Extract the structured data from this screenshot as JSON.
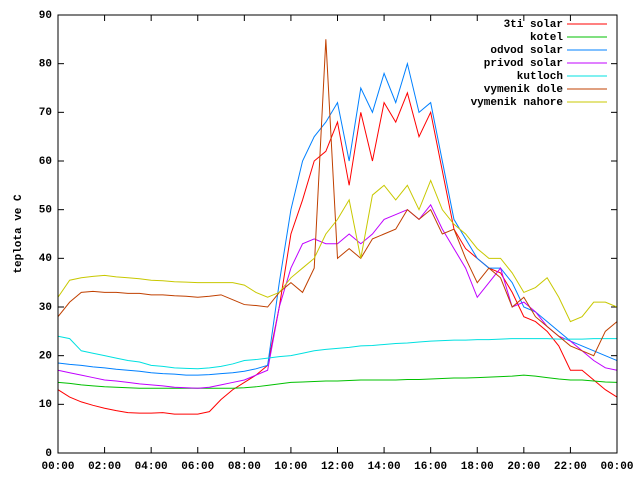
{
  "chart_data": {
    "type": "line",
    "y_label": "teplota ve C",
    "x": [
      0,
      0.5,
      1,
      1.5,
      2,
      2.5,
      3,
      3.5,
      4,
      4.5,
      5,
      5.5,
      6,
      6.5,
      7,
      7.5,
      8,
      8.5,
      9,
      9.5,
      10,
      10.5,
      11,
      11.5,
      12,
      12.5,
      13,
      13.5,
      14,
      14.5,
      15,
      15.5,
      16,
      16.5,
      17,
      17.5,
      18,
      18.5,
      19,
      19.5,
      20,
      20.5,
      21,
      21.5,
      22,
      22.5,
      23,
      23.5,
      24
    ],
    "xlim": [
      0,
      24
    ],
    "xticks": [
      {
        "value": 0,
        "label": "00:00"
      },
      {
        "value": 2,
        "label": "02:00"
      },
      {
        "value": 4,
        "label": "04:00"
      },
      {
        "value": 6,
        "label": "06:00"
      },
      {
        "value": 8,
        "label": "08:00"
      },
      {
        "value": 10,
        "label": "10:00"
      },
      {
        "value": 12,
        "label": "12:00"
      },
      {
        "value": 14,
        "label": "14:00"
      },
      {
        "value": 16,
        "label": "16:00"
      },
      {
        "value": 18,
        "label": "18:00"
      },
      {
        "value": 20,
        "label": "20:00"
      },
      {
        "value": 22,
        "label": "22:00"
      },
      {
        "value": 24,
        "label": "00:00"
      }
    ],
    "ylim": [
      0,
      90
    ],
    "yticks": [
      0,
      10,
      20,
      30,
      40,
      50,
      60,
      70,
      80,
      90
    ],
    "grid": false,
    "legend": "top-right",
    "series": [
      {
        "name": "3ti solar",
        "color": "#ff0000",
        "values": [
          13,
          11.5,
          10.5,
          9.8,
          9.2,
          8.7,
          8.3,
          8.2,
          8.2,
          8.3,
          8,
          8,
          8,
          8.5,
          11,
          13,
          14.5,
          16,
          18,
          30,
          45,
          52,
          60,
          62,
          68,
          55,
          70,
          60,
          72,
          68,
          74,
          65,
          70,
          58,
          46,
          42,
          40,
          38,
          37,
          33,
          28,
          27,
          25,
          22,
          17,
          17,
          15,
          13,
          11.5
        ]
      },
      {
        "name": "kotel",
        "color": "#00c000",
        "values": [
          14.5,
          14.3,
          14,
          13.8,
          13.6,
          13.5,
          13.4,
          13.3,
          13.3,
          13.3,
          13.3,
          13.3,
          13.3,
          13.3,
          13.3,
          13.3,
          13.4,
          13.6,
          13.9,
          14.2,
          14.5,
          14.6,
          14.7,
          14.8,
          14.8,
          14.9,
          15,
          15,
          15,
          15,
          15.1,
          15.1,
          15.2,
          15.3,
          15.4,
          15.4,
          15.5,
          15.6,
          15.7,
          15.8,
          16,
          15.8,
          15.5,
          15.2,
          15,
          15,
          14.8,
          14.6,
          14.5
        ]
      },
      {
        "name": "odvod solar",
        "color": "#0080ff",
        "values": [
          18.5,
          18.2,
          18,
          17.7,
          17.5,
          17.2,
          17,
          16.8,
          16.5,
          16.3,
          16.2,
          16,
          16,
          16.1,
          16.3,
          16.5,
          16.8,
          17.3,
          18,
          35,
          50,
          60,
          65,
          68,
          72,
          60,
          75,
          70,
          78,
          72,
          80,
          70,
          72,
          60,
          48,
          44,
          40,
          38,
          38,
          35,
          30,
          29,
          27,
          25,
          23,
          22,
          21,
          20,
          19
        ]
      },
      {
        "name": "privod solar",
        "color": "#c000ff",
        "values": [
          17,
          16.5,
          16,
          15.5,
          15,
          14.8,
          14.5,
          14.2,
          14,
          13.8,
          13.5,
          13.4,
          13.3,
          13.5,
          14,
          14.5,
          15,
          16,
          17,
          30,
          38,
          43,
          44,
          43,
          43,
          45,
          43,
          45,
          48,
          49,
          50,
          48,
          51,
          46,
          42,
          38,
          32,
          35,
          38,
          30,
          31,
          29,
          26,
          24,
          23,
          21,
          19,
          17.5,
          17
        ]
      },
      {
        "name": "kutloch",
        "color": "#00e0e0",
        "values": [
          24,
          23.5,
          21,
          20.5,
          20,
          19.5,
          19,
          18.7,
          18,
          17.8,
          17.5,
          17.4,
          17.3,
          17.5,
          17.8,
          18.3,
          19,
          19.2,
          19.5,
          19.8,
          20,
          20.5,
          21,
          21.3,
          21.5,
          21.7,
          22,
          22.1,
          22.3,
          22.5,
          22.6,
          22.8,
          23,
          23.1,
          23.2,
          23.2,
          23.3,
          23.3,
          23.4,
          23.5,
          23.5,
          23.5,
          23.5,
          23.4,
          23.4,
          23.4,
          23.5,
          23.5,
          23.5
        ]
      },
      {
        "name": "vymenik dole",
        "color": "#c04000",
        "values": [
          28,
          31,
          33,
          33.2,
          33,
          33,
          32.8,
          32.8,
          32.5,
          32.5,
          32.3,
          32.2,
          32,
          32.2,
          32.5,
          31.5,
          30.5,
          30.3,
          30,
          33,
          35,
          33,
          38,
          85,
          40,
          42,
          40,
          44,
          45,
          46,
          50,
          48,
          50,
          45,
          46,
          40,
          35,
          38,
          36,
          30,
          32,
          28,
          26,
          24,
          22,
          21,
          20,
          25,
          27
        ]
      },
      {
        "name": "vymenik nahore",
        "color": "#c8c800",
        "values": [
          32,
          35.5,
          36,
          36.3,
          36.5,
          36.2,
          36,
          35.8,
          35.5,
          35.4,
          35.2,
          35.1,
          35,
          35,
          35,
          35,
          34.5,
          33,
          32,
          33,
          36,
          38,
          40,
          45,
          48,
          52,
          40,
          53,
          55,
          52,
          55,
          50,
          56,
          50,
          47,
          45,
          42,
          40,
          40,
          37,
          33,
          34,
          36,
          32,
          27,
          28,
          31,
          31,
          30
        ]
      }
    ]
  }
}
